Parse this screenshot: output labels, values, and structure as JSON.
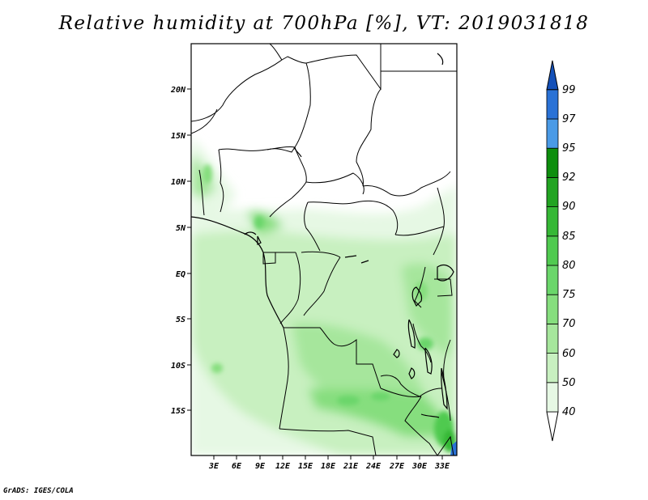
{
  "title": "Relative humidity at 700hPa [%], VT: 2019031818",
  "credit": "GrADS: IGES/COLA",
  "map": {
    "lat_ticks": [
      "20N",
      "15N",
      "10N",
      "5N",
      "EQ",
      "5S",
      "10S",
      "15S"
    ],
    "lon_ticks": [
      "3E",
      "6E",
      "9E",
      "12E",
      "15E",
      "18E",
      "21E",
      "24E",
      "27E",
      "30E",
      "33E"
    ]
  },
  "colorbar": {
    "levels": [
      "40",
      "50",
      "60",
      "70",
      "75",
      "80",
      "85",
      "90",
      "92",
      "95",
      "97",
      "99"
    ],
    "colors": [
      "#ffffff",
      "#e6f8e4",
      "#c8f0c0",
      "#a6e69c",
      "#86de7e",
      "#6ad66a",
      "#50ca50",
      "#36b836",
      "#22a422",
      "#0e8e0e",
      "#4a9ae6",
      "#2a72d6",
      "#1450b8"
    ]
  }
}
